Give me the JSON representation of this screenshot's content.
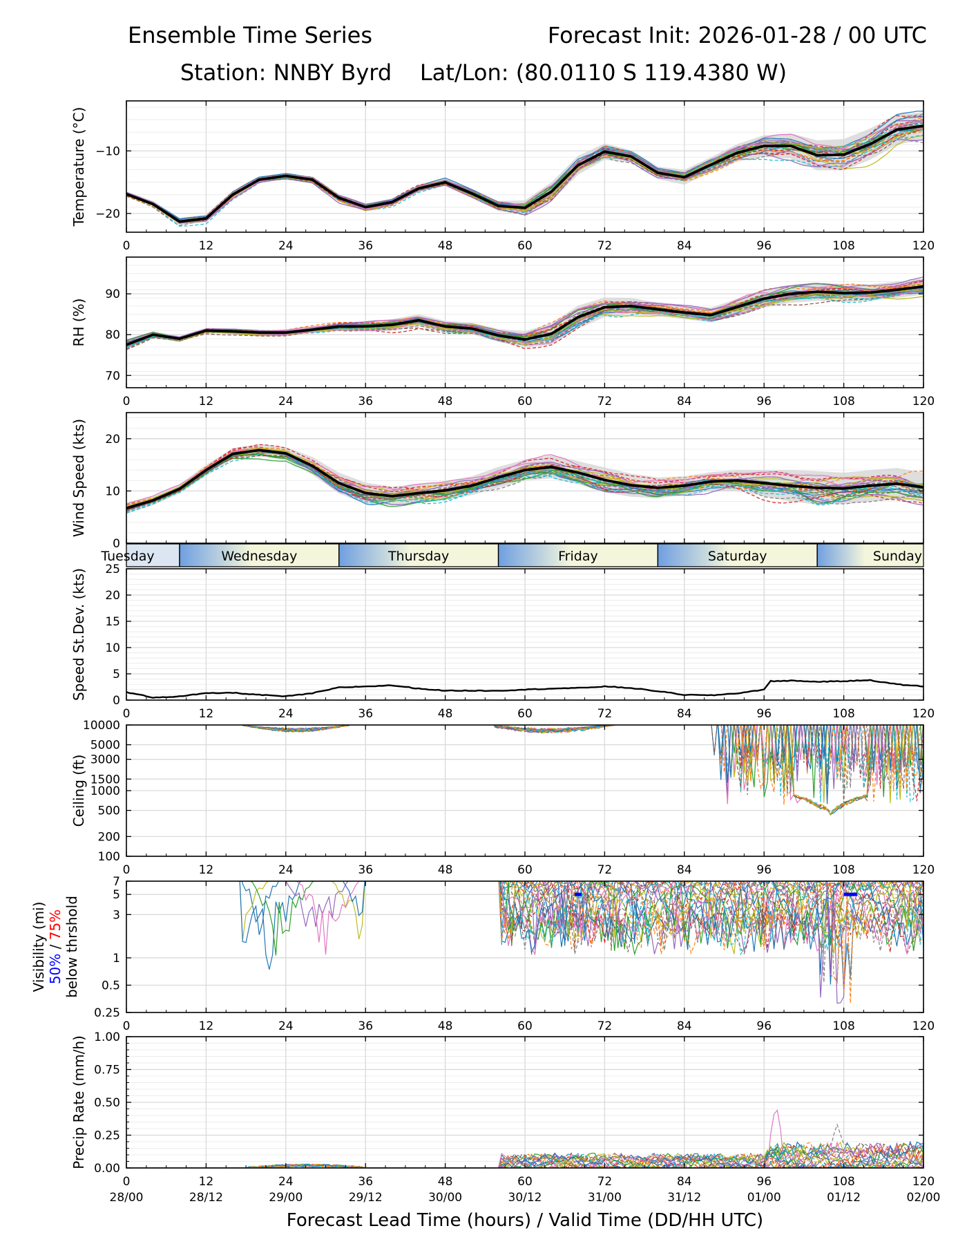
{
  "header": {
    "left_title": "Ensemble Time Series",
    "right_title": "Forecast Init: 2026-01-28 / 00 UTC",
    "station_line": "Station: NNBY Byrd    Lat/Lon: (80.0110 S 119.4380 W)"
  },
  "x_axis": {
    "label": "Forecast Lead Time (hours) / Valid Time (DD/HH UTC)",
    "range": [
      0,
      120
    ],
    "ticks": [
      0,
      12,
      24,
      36,
      48,
      60,
      72,
      84,
      96,
      108,
      120
    ],
    "valid_times": [
      "28/00",
      "28/12",
      "29/00",
      "29/12",
      "30/00",
      "30/12",
      "31/00",
      "31/12",
      "01/00",
      "01/12",
      "02/00"
    ]
  },
  "colors": {
    "ensemble_mean": "#000000",
    "spread_band": "#d3d3d3",
    "members": [
      "#1f77b4",
      "#ff7f0e",
      "#2ca02c",
      "#d62728",
      "#9467bd",
      "#8c564b",
      "#e377c2",
      "#7f7f7f",
      "#bcbd22",
      "#17becf"
    ],
    "vis_50": "#0000ff",
    "vis_75": "#ff0000"
  },
  "day_band": {
    "days": [
      "Tuesday",
      "Wednesday",
      "Thursday",
      "Friday",
      "Saturday",
      "Sunday"
    ],
    "boundaries_hours": [
      8,
      32,
      56,
      80,
      104
    ],
    "colors": {
      "night": "#6f9fe0",
      "day": "#f4f6dc"
    }
  },
  "chart_data": [
    {
      "id": "temperature",
      "type": "line",
      "ylabel": "Temperature (°C)",
      "ylim": [
        -23,
        -2
      ],
      "yticks": [
        -20,
        -10
      ],
      "yticklabels": [
        "−20",
        "−10"
      ],
      "grid": true,
      "mean": {
        "x": [
          0,
          4,
          8,
          12,
          16,
          20,
          24,
          28,
          32,
          36,
          40,
          44,
          48,
          52,
          56,
          60,
          64,
          68,
          72,
          76,
          80,
          84,
          88,
          92,
          96,
          100,
          104,
          108,
          112,
          116,
          120
        ],
        "y": [
          -16.9,
          -18.5,
          -21.3,
          -20.8,
          -17.0,
          -14.6,
          -14.0,
          -14.6,
          -17.5,
          -19.0,
          -18.2,
          -16.0,
          -15.0,
          -16.8,
          -18.8,
          -19.1,
          -16.5,
          -12.3,
          -10.1,
          -10.9,
          -13.5,
          -14.2,
          -12.2,
          -10.3,
          -9.2,
          -9.2,
          -10.7,
          -10.6,
          -8.9,
          -6.6,
          -6.0
        ]
      },
      "spread_halfwidth": [
        0.4,
        0.5,
        0.6,
        0.6,
        0.6,
        0.5,
        0.5,
        0.5,
        0.6,
        0.6,
        0.6,
        0.6,
        0.6,
        0.6,
        0.8,
        1.2,
        1.5,
        1.5,
        1.3,
        1.0,
        1.0,
        1.2,
        1.2,
        1.4,
        1.7,
        2.0,
        2.4,
        2.5,
        2.5,
        2.4,
        2.2
      ],
      "member_count": 30
    },
    {
      "id": "rh",
      "type": "line",
      "ylabel": "RH (%)",
      "ylim": [
        67,
        99
      ],
      "yticks": [
        70,
        80,
        90
      ],
      "yticklabels": [
        "70",
        "80",
        "90"
      ],
      "grid": true,
      "mean": {
        "x": [
          0,
          4,
          8,
          12,
          16,
          20,
          24,
          28,
          32,
          36,
          40,
          44,
          48,
          52,
          56,
          60,
          64,
          68,
          72,
          76,
          80,
          84,
          88,
          92,
          96,
          100,
          104,
          108,
          112,
          116,
          120
        ],
        "y": [
          77.5,
          80.0,
          79.0,
          81.0,
          80.8,
          80.5,
          80.5,
          81.2,
          82.0,
          82.0,
          82.4,
          83.5,
          82.0,
          81.5,
          79.8,
          78.8,
          80.2,
          84.3,
          86.7,
          87.0,
          86.2,
          85.4,
          84.8,
          86.8,
          88.8,
          90.0,
          90.5,
          90.2,
          90.3,
          91.0,
          91.8
        ]
      },
      "spread_halfwidth": [
        1.2,
        0.8,
        0.7,
        0.7,
        0.6,
        0.6,
        0.7,
        0.8,
        1.0,
        1.2,
        1.4,
        1.5,
        1.4,
        1.4,
        1.6,
        2.0,
        2.6,
        2.8,
        2.4,
        2.0,
        1.6,
        1.6,
        1.8,
        2.0,
        2.2,
        2.2,
        2.2,
        2.2,
        2.0,
        2.0,
        2.0
      ],
      "member_count": 30
    },
    {
      "id": "wind_speed",
      "type": "line",
      "ylabel": "Wind Speed (kts)",
      "ylim": [
        0,
        25
      ],
      "yticks": [
        0,
        10,
        20
      ],
      "yticklabels": [
        "0",
        "10",
        "20"
      ],
      "grid": true,
      "mean": {
        "x": [
          0,
          4,
          8,
          12,
          16,
          20,
          24,
          28,
          32,
          36,
          40,
          44,
          48,
          52,
          56,
          60,
          64,
          68,
          72,
          76,
          80,
          84,
          88,
          92,
          96,
          100,
          104,
          108,
          112,
          116,
          120
        ],
        "y": [
          6.7,
          8.2,
          10.4,
          14.0,
          17.1,
          17.8,
          17.2,
          14.8,
          11.5,
          9.6,
          9.0,
          9.6,
          10.1,
          11.0,
          12.6,
          14.0,
          14.6,
          13.5,
          12.1,
          11.1,
          10.6,
          11.0,
          11.8,
          12.0,
          11.5,
          11.0,
          10.6,
          10.5,
          11.0,
          11.4,
          10.7
        ]
      },
      "spread_halfwidth": [
        1.0,
        0.9,
        0.9,
        1.0,
        1.1,
        1.2,
        1.2,
        1.7,
        2.0,
        2.0,
        1.8,
        1.8,
        1.8,
        1.8,
        2.0,
        2.0,
        2.2,
        2.2,
        2.4,
        2.2,
        2.0,
        1.8,
        1.8,
        2.0,
        2.5,
        3.0,
        3.2,
        3.0,
        3.0,
        3.0,
        2.8
      ],
      "member_count": 30
    },
    {
      "id": "speed_stdev",
      "type": "line",
      "ylabel": "Speed St.Dev. (kts)",
      "ylim": [
        0,
        25
      ],
      "yticks": [
        0,
        5,
        10,
        15,
        20,
        25
      ],
      "yticklabels": [
        "0",
        "5",
        "10",
        "15",
        "20",
        "25"
      ],
      "grid": true,
      "mean": {
        "x": [
          0,
          4,
          8,
          12,
          16,
          20,
          24,
          28,
          32,
          36,
          40,
          44,
          48,
          52,
          56,
          60,
          64,
          68,
          72,
          76,
          80,
          84,
          88,
          92,
          96,
          97,
          100,
          104,
          108,
          112,
          116,
          120
        ],
        "y": [
          1.5,
          0.5,
          0.7,
          1.3,
          1.4,
          1.0,
          0.7,
          1.3,
          2.4,
          2.6,
          2.8,
          2.2,
          1.8,
          1.8,
          1.8,
          2.0,
          2.2,
          2.3,
          2.6,
          2.3,
          1.7,
          1.0,
          0.9,
          1.3,
          2.0,
          3.6,
          3.7,
          3.5,
          3.6,
          3.8,
          3.0,
          2.6
        ]
      }
    },
    {
      "id": "ceiling",
      "type": "line",
      "ylabel": "Ceiling (ft)",
      "yscale": "log",
      "ylim": [
        100,
        10000
      ],
      "yticks": [
        100,
        200,
        500,
        1000,
        1500,
        3000,
        5000,
        10000
      ],
      "yticklabels": [
        "100",
        "200",
        "500",
        "1000",
        "1500",
        "3000",
        "5000",
        "10000"
      ],
      "grid": true,
      "member_count": 22
    },
    {
      "id": "visibility",
      "type": "line",
      "ylabel": "Visibility (mi)",
      "ylabel_50": "50%",
      "ylabel_sep": " / ",
      "ylabel_75": "75%",
      "ylabel_line3": "below thrshold",
      "yscale": "log",
      "ylim": [
        0.25,
        7
      ],
      "yticks": [
        0.25,
        0.5,
        1,
        3,
        5,
        7
      ],
      "yticklabels": [
        "0.25",
        "0.5",
        "1",
        "3",
        "5",
        "7"
      ],
      "grid": true,
      "threshold_50_segments": [
        [
          67.5,
          68.5
        ],
        [
          108,
          110
        ]
      ],
      "member_count": 22
    },
    {
      "id": "precip_rate",
      "type": "line",
      "ylabel": "Precip Rate (mm/h)",
      "ylim": [
        0,
        1
      ],
      "yticks": [
        0,
        0.25,
        0.5,
        0.75,
        1.0
      ],
      "yticklabels": [
        "0.00",
        "0.25",
        "0.50",
        "0.75",
        "1.00"
      ],
      "grid": true,
      "member_count": 22
    }
  ]
}
